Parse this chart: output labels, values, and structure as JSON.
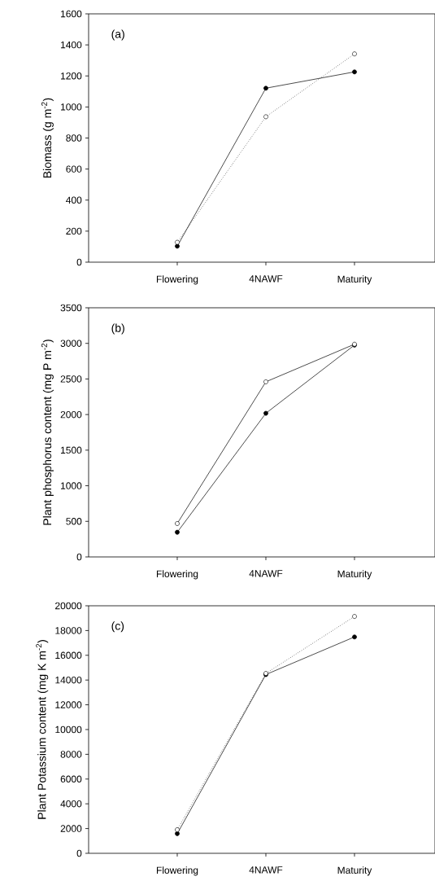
{
  "chart_data": [
    {
      "type": "line",
      "ylabel": "Biomass (g m$^{-2}$)",
      "categories": [
        "Flowering",
        "4NAWF",
        "Maturity"
      ],
      "ylim": [
        0,
        1600
      ],
      "yticks": [
        0,
        200,
        400,
        600,
        800,
        1000,
        1200,
        1400,
        1600
      ],
      "marker": "circle",
      "annotations": [
        "(a)"
      ],
      "series": [
        {
          "color": "#000000",
          "line_style": "solid",
          "values": [
            103,
            1121,
            1226
          ]
        },
        {
          "color": "#ffffff",
          "line_style": "dotted",
          "values": [
            128,
            937,
            1342
          ]
        }
      ]
    },
    {
      "type": "line",
      "ylabel": "Plant phosphorus content (mg P m$^{-2}$)",
      "categories": [
        "Flowering",
        "4NAWF",
        "Maturity"
      ],
      "ylim": [
        0,
        3500
      ],
      "yticks": [
        0,
        500,
        1000,
        1500,
        2000,
        2500,
        3000,
        3500
      ],
      "marker": "circle",
      "annotations": [
        "(b)"
      ],
      "series": [
        {
          "color": "#000000",
          "line_style": "solid",
          "values": [
            347,
            2018,
            2976
          ]
        },
        {
          "color": "#ffffff",
          "line_style": "solid",
          "values": [
            469,
            2460,
            2988
          ]
        }
      ]
    },
    {
      "type": "line",
      "ylabel": "Plant Potassium content (mg K m$^{-2}$)",
      "categories": [
        "Flowering",
        "4NAWF",
        "Maturity"
      ],
      "ylim": [
        0,
        20000
      ],
      "yticks": [
        0,
        2000,
        4000,
        6000,
        8000,
        10000,
        12000,
        14000,
        16000,
        18000,
        20000
      ],
      "marker": "circle",
      "annotations": [
        "(c)"
      ],
      "series": [
        {
          "color": "#000000",
          "line_style": "solid",
          "values": [
            1587,
            14444,
            17483
          ]
        },
        {
          "color": "#ffffff",
          "line_style": "dotted",
          "values": [
            1905,
            14535,
            19138
          ]
        }
      ]
    }
  ]
}
